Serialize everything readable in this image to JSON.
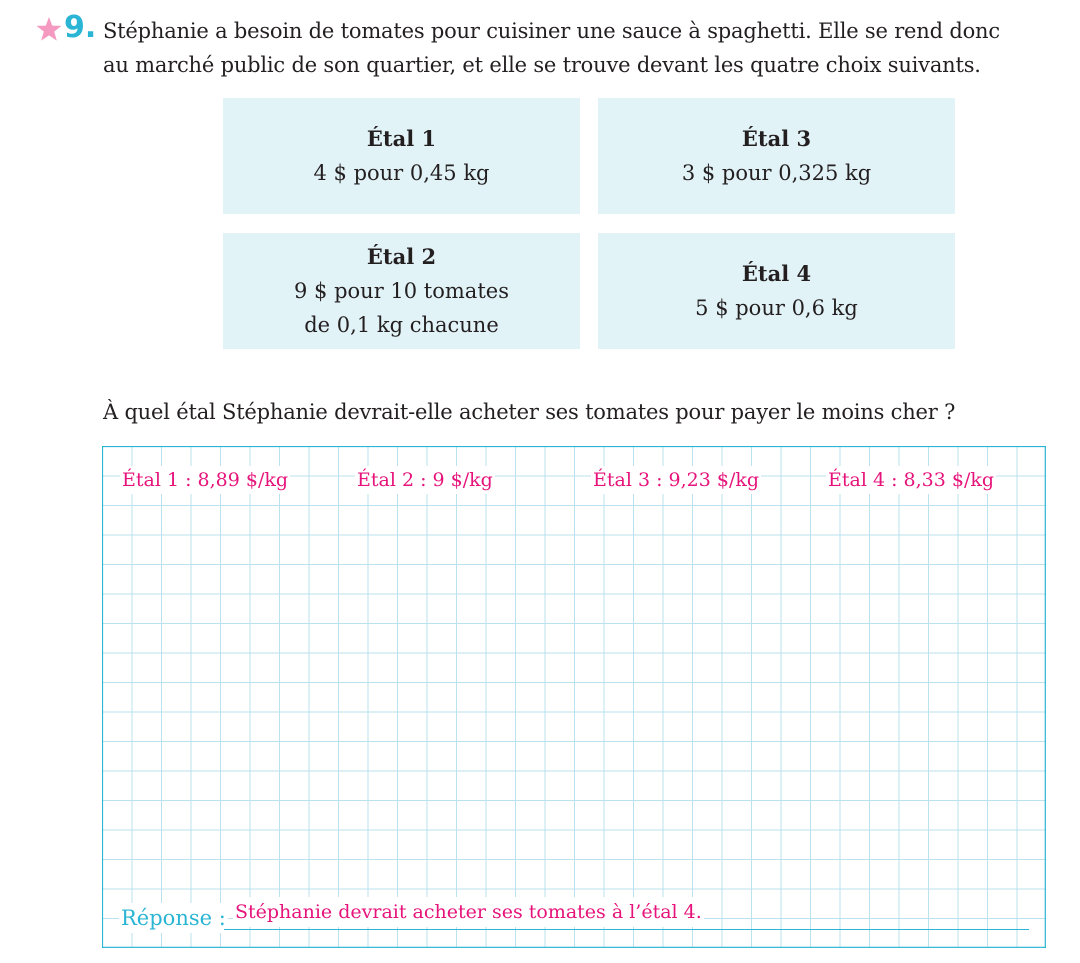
{
  "exercise": {
    "number": "9.",
    "statement_lines": [
      "Stéphanie a besoin de tomates pour cuisiner une sauce à spaghetti. Elle se rend donc",
      "au marché public de son quartier, et elle se trouve devant les quatre choix suivants."
    ],
    "question": "À quel étal Stéphanie devrait-elle acheter ses tomates pour payer le moins cher ?"
  },
  "stalls": [
    {
      "title": "Étal 1",
      "lines": [
        "4 $ pour 0,45 kg"
      ]
    },
    {
      "title": "Étal 3",
      "lines": [
        "3 $ pour 0,325 kg"
      ]
    },
    {
      "title": "Étal 2",
      "lines": [
        "9 $ pour 10 tomates",
        "de 0,1 kg chacune"
      ]
    },
    {
      "title": "Étal 4",
      "lines": [
        "5 $ pour 0,6 kg"
      ]
    }
  ],
  "work": [
    "Étal 1 : 8,89 $/kg",
    "Étal 2 : 9 $/kg",
    "Étal 3 : 9,23 $/kg",
    "Étal 4 : 8,33 $/kg"
  ],
  "answer": {
    "label": "Réponse :",
    "text": "Stéphanie devrait acheter ses tomates à l’étal 4."
  },
  "colors": {
    "accent_blue": "#29b5d3",
    "answer_pink": "#e6137b",
    "stall_bg": "#e2f3f7",
    "grid_line": "#b9e1ee",
    "star": "#f49ac1"
  }
}
